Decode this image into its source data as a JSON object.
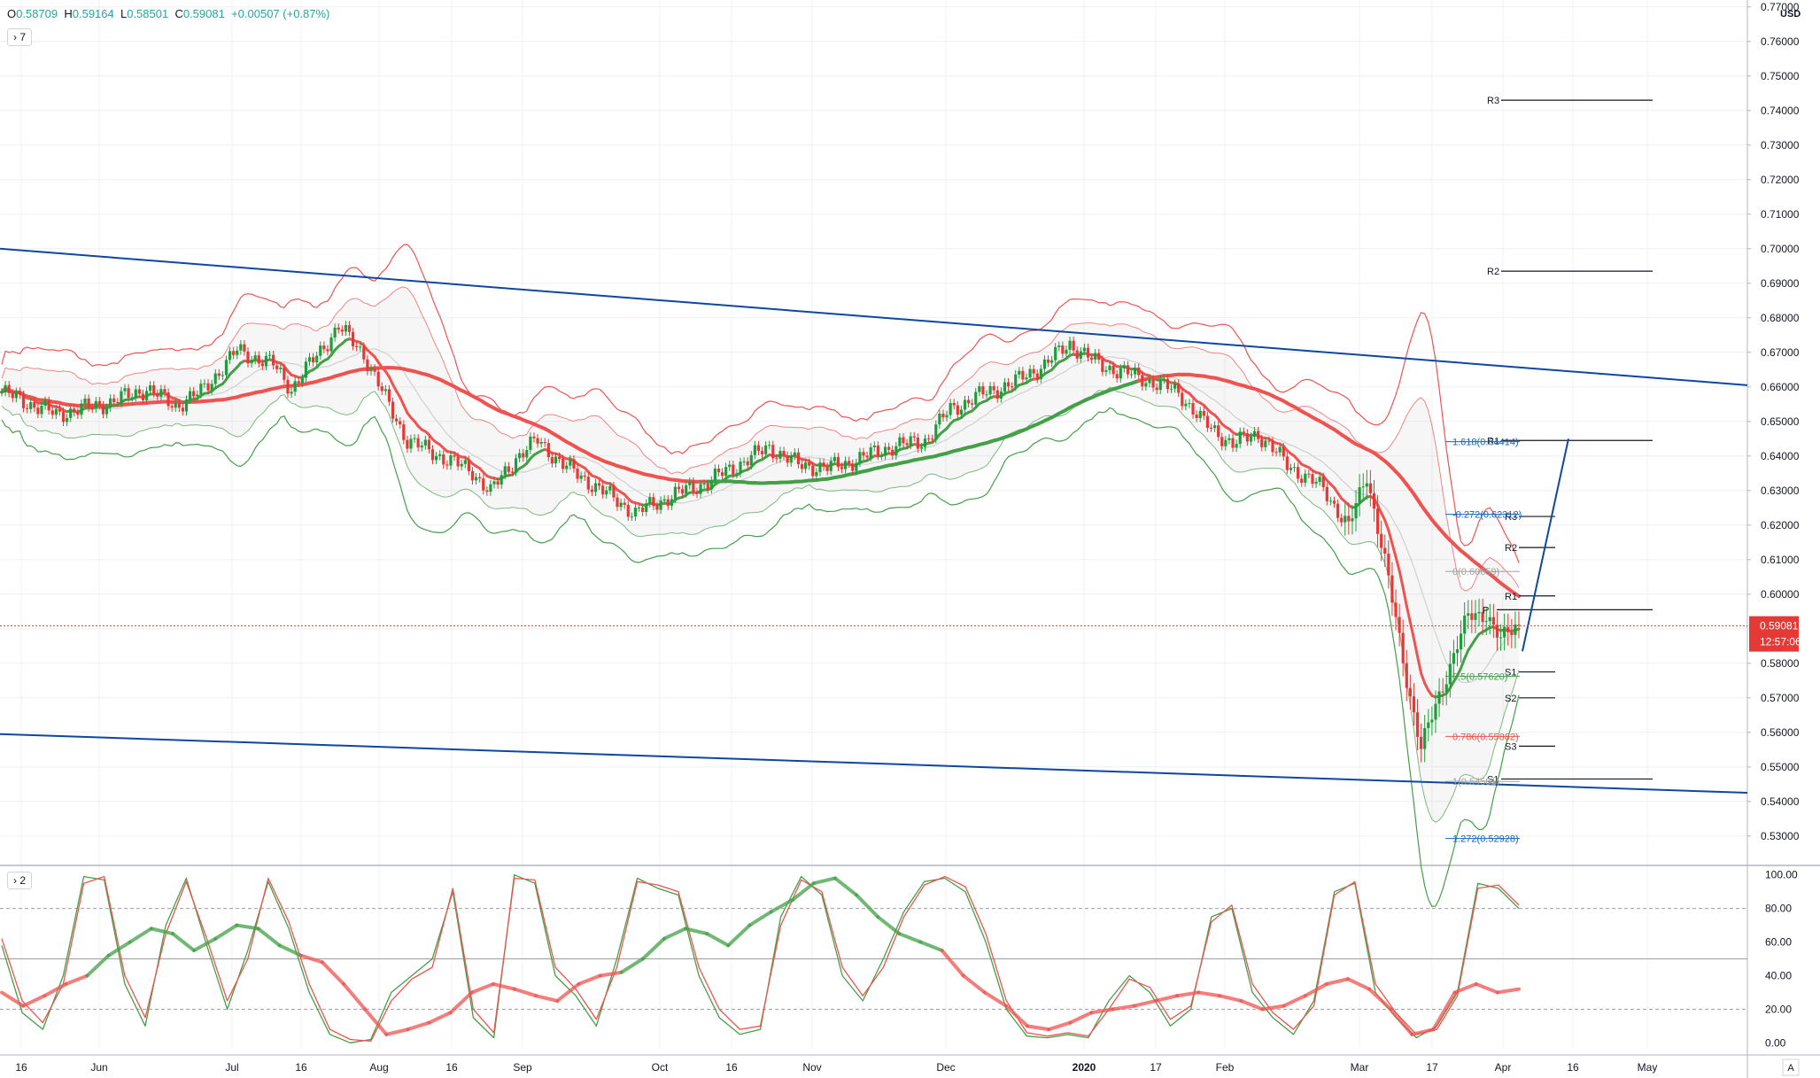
{
  "header": {
    "ohlc": [
      {
        "label": "O",
        "value": "0.58709"
      },
      {
        "label": "H",
        "value": "0.59164"
      },
      {
        "label": "L",
        "value": "0.58501"
      },
      {
        "label": "C",
        "value": "0.59081"
      },
      {
        "label": "",
        "value": "+0.00507 (+0.87%)"
      }
    ],
    "main_pane_toggle": "7",
    "osc_pane_toggle": "2",
    "currency": "USD",
    "badge_char": "A"
  },
  "colors": {
    "up": "#26a69a",
    "candle_up": "#1e9e3a",
    "candle_down": "#e53935",
    "channel": "#0d47a1",
    "price_line": "#e53935",
    "ma_slow": "#ef5350",
    "ma_green": "#43a047"
  },
  "chart_data": [
    {
      "type": "candlestick",
      "y_axis": {
        "range": [
          0.522,
          0.772
        ],
        "ticks": [
          "0.77000",
          "0.76000",
          "0.75000",
          "0.74000",
          "0.73000",
          "0.72000",
          "0.71000",
          "0.70000",
          "0.69000",
          "0.68000",
          "0.67000",
          "0.66000",
          "0.65000",
          "0.64000",
          "0.63000",
          "0.62000",
          "0.61000",
          "0.60000",
          "0.59000",
          "0.58000",
          "0.57000",
          "0.56000",
          "0.55000",
          "0.54000",
          "0.53000"
        ]
      },
      "x_axis": {
        "ticks": [
          "16",
          "Jun",
          "Jul",
          "16",
          "Aug",
          "16",
          "Sep",
          "Oct",
          "16",
          "Nov",
          "Dec",
          "2020",
          "17",
          "Feb",
          "Mar",
          "17",
          "Apr",
          "16",
          "May"
        ]
      },
      "last_price": {
        "value": 0.59081,
        "label": "0.59081",
        "countdown": "12:57:06"
      },
      "price_anchors": [
        [
          0,
          0.6585
        ],
        [
          15,
          0.652
        ],
        [
          30,
          0.6555
        ],
        [
          40,
          0.6595
        ],
        [
          48,
          0.6545
        ],
        [
          55,
          0.6585
        ],
        [
          65,
          0.6705
        ],
        [
          75,
          0.6665
        ],
        [
          80,
          0.6595
        ],
        [
          88,
          0.6705
        ],
        [
          93,
          0.6775
        ],
        [
          100,
          0.6695
        ],
        [
          106,
          0.6565
        ],
        [
          112,
          0.6445
        ],
        [
          120,
          0.6405
        ],
        [
          130,
          0.6355
        ],
        [
          135,
          0.6295
        ],
        [
          142,
          0.6395
        ],
        [
          148,
          0.6445
        ],
        [
          155,
          0.6375
        ],
        [
          165,
          0.6305
        ],
        [
          175,
          0.6235
        ],
        [
          185,
          0.6285
        ],
        [
          195,
          0.6325
        ],
        [
          205,
          0.6385
        ],
        [
          212,
          0.6425
        ],
        [
          220,
          0.6375
        ],
        [
          228,
          0.6365
        ],
        [
          235,
          0.6385
        ],
        [
          245,
          0.6425
        ],
        [
          255,
          0.6445
        ],
        [
          262,
          0.6535
        ],
        [
          270,
          0.6575
        ],
        [
          280,
          0.6615
        ],
        [
          288,
          0.6665
        ],
        [
          295,
          0.6725
        ],
        [
          303,
          0.6665
        ],
        [
          315,
          0.6625
        ],
        [
          325,
          0.6585
        ],
        [
          332,
          0.6495
        ],
        [
          340,
          0.6435
        ],
        [
          347,
          0.6465
        ],
        [
          355,
          0.6375
        ],
        [
          365,
          0.6305
        ],
        [
          372,
          0.6195
        ],
        [
          377,
          0.6345
        ],
        [
          382,
          0.6095
        ],
        [
          388,
          0.5755
        ],
        [
          392,
          0.5555
        ],
        [
          397,
          0.5705
        ],
        [
          402,
          0.5855
        ],
        [
          405,
          0.5935
        ],
        [
          410,
          0.5945
        ],
        [
          414,
          0.5865
        ],
        [
          418,
          0.5908
        ]
      ],
      "channel_lines": [
        {
          "name": "upper",
          "from": [
            0,
            0.7
          ],
          "to": [
            1.0,
            0.6605
          ]
        },
        {
          "name": "lower",
          "from": [
            0,
            0.5595
          ],
          "to": [
            1.0,
            0.5425
          ]
        }
      ],
      "pivot_levels": [
        {
          "label": "R3",
          "value": 0.743
        },
        {
          "label": "R2",
          "value": 0.6935
        },
        {
          "label": "R1",
          "value": 0.6445
        },
        {
          "label": "S1",
          "value": 0.5465
        },
        {
          "label": "R3",
          "value": 0.6225
        },
        {
          "label": "R2",
          "value": 0.6135
        },
        {
          "label": "R1",
          "value": 0.5995
        },
        {
          "label": "P",
          "value": 0.5955
        },
        {
          "label": "S1",
          "value": 0.5775
        },
        {
          "label": "S2",
          "value": 0.57
        },
        {
          "label": "S3",
          "value": 0.556
        }
      ],
      "fibonacci": [
        {
          "label": "1.618(0.64414)",
          "value": 0.64414,
          "color": "#1565c0"
        },
        {
          "label": "-0.272(0.62312)",
          "value": 0.62312,
          "color": "#1565c0"
        },
        {
          "label": "0(0.60659)",
          "value": 0.60659,
          "color": "#9e9e9e"
        },
        {
          "label": "0.5(0.57620)",
          "value": 0.5762,
          "color": "#43a047"
        },
        {
          "label": "0.786(0.55882)",
          "value": 0.55882,
          "color": "#ef5350"
        },
        {
          "label": "1(0.54581)",
          "value": 0.54581,
          "color": "#9e9e9e"
        },
        {
          "label": "1.272(0.52928)",
          "value": 0.52928,
          "color": "#1565c0"
        }
      ],
      "projection_line": {
        "from_price": 0.5835,
        "to_price": 0.645
      }
    },
    {
      "type": "line",
      "y_axis": {
        "range": [
          -3,
          103
        ],
        "ticks": [
          "100.00",
          "80.00",
          "60.00",
          "40.00",
          "20.00",
          "0.00"
        ]
      },
      "bands": [
        80,
        50,
        20
      ],
      "series": [
        {
          "name": "",
          "values": [
            58,
            18,
            8,
            40,
            99,
            97,
            35,
            10,
            70,
            98,
            58,
            20,
            55,
            96,
            68,
            30,
            5,
            0,
            2,
            30,
            40,
            50,
            90,
            15,
            3,
            100,
            95,
            40,
            28,
            10,
            50,
            98,
            92,
            88,
            40,
            15,
            5,
            8,
            75,
            99,
            88,
            40,
            25,
            50,
            78,
            96,
            98,
            90,
            60,
            20,
            4,
            3,
            5,
            3,
            25,
            40,
            30,
            10,
            20,
            75,
            80,
            30,
            15,
            5,
            25,
            90,
            95,
            30,
            15,
            3,
            10,
            30,
            95,
            92,
            80
          ]
        },
        {
          "name": "",
          "values": [
            62,
            25,
            12,
            35,
            95,
            99,
            40,
            15,
            65,
            96,
            62,
            25,
            50,
            98,
            72,
            35,
            8,
            2,
            1,
            25,
            38,
            45,
            92,
            20,
            6,
            98,
            97,
            45,
            32,
            14,
            45,
            96,
            94,
            90,
            45,
            20,
            8,
            10,
            70,
            97,
            90,
            45,
            28,
            45,
            75,
            94,
            99,
            93,
            65,
            25,
            6,
            4,
            6,
            4,
            20,
            38,
            33,
            14,
            22,
            72,
            82,
            35,
            18,
            8,
            22,
            88,
            96,
            35,
            18,
            5,
            8,
            28,
            92,
            94,
            82
          ]
        },
        {
          "name": "",
          "values": [
            30,
            22,
            28,
            35,
            40,
            52,
            60,
            68,
            65,
            55,
            62,
            70,
            68,
            58,
            52,
            48,
            35,
            20,
            5,
            8,
            12,
            18,
            30,
            35,
            32,
            28,
            25,
            35,
            40,
            42,
            50,
            62,
            68,
            65,
            58,
            70,
            78,
            85,
            95,
            98,
            88,
            75,
            65,
            60,
            55,
            40,
            30,
            22,
            10,
            8,
            12,
            18,
            20,
            22,
            25,
            28,
            30,
            28,
            25,
            20,
            22,
            28,
            35,
            38,
            32,
            20,
            5,
            8,
            30,
            35,
            30,
            32
          ]
        }
      ]
    }
  ]
}
